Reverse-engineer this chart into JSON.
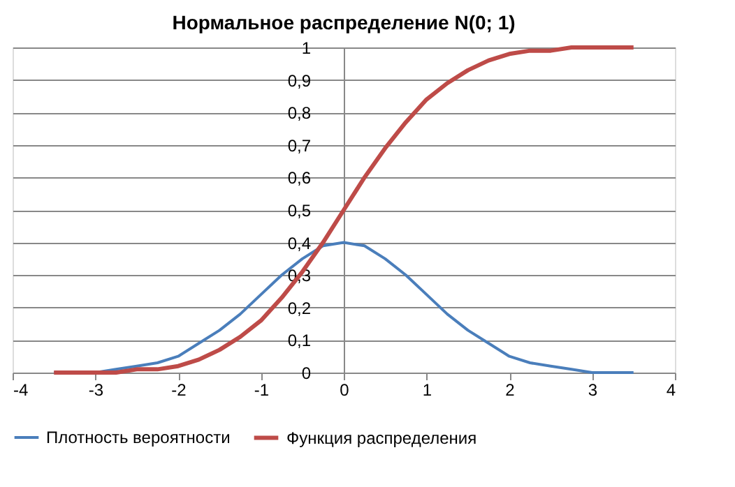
{
  "chart_data": {
    "type": "line",
    "title": "Нормальное распределение N(0; 1)",
    "x": [
      -3.5,
      -3.25,
      -3,
      -2.75,
      -2.5,
      -2.25,
      -2,
      -1.75,
      -1.5,
      -1.25,
      -1,
      -0.75,
      -0.5,
      -0.25,
      0,
      0.25,
      0.5,
      0.75,
      1,
      1.25,
      1.5,
      1.75,
      2,
      2.25,
      2.5,
      2.75,
      3,
      3.25,
      3.5
    ],
    "series": [
      {
        "name": "Плотность вероятности",
        "color": "#4a7ebb",
        "values": [
          0.0,
          0.0,
          0.0,
          0.01,
          0.02,
          0.03,
          0.05,
          0.09,
          0.13,
          0.18,
          0.24,
          0.3,
          0.35,
          0.39,
          0.4,
          0.39,
          0.35,
          0.3,
          0.24,
          0.18,
          0.13,
          0.09,
          0.05,
          0.03,
          0.02,
          0.01,
          0.0,
          0.0,
          0.0
        ]
      },
      {
        "name": "Функция распределения",
        "color": "#be4b48",
        "values": [
          0.0,
          0.0,
          0.0,
          0.0,
          0.01,
          0.01,
          0.02,
          0.04,
          0.07,
          0.11,
          0.16,
          0.23,
          0.31,
          0.4,
          0.5,
          0.6,
          0.69,
          0.77,
          0.84,
          0.89,
          0.93,
          0.96,
          0.98,
          0.99,
          0.99,
          1.0,
          1.0,
          1.0,
          1.0
        ]
      }
    ],
    "xlim": [
      -4,
      4
    ],
    "xticks": [
      -4,
      -3,
      -2,
      -1,
      0,
      1,
      2,
      3,
      4
    ],
    "ylim": [
      0,
      1
    ],
    "yticks": [
      {
        "value": 0,
        "label": "0"
      },
      {
        "value": 0.1,
        "label": "0,1"
      },
      {
        "value": 0.2,
        "label": "0,2"
      },
      {
        "value": 0.3,
        "label": "0,3"
      },
      {
        "value": 0.4,
        "label": "0,4"
      },
      {
        "value": 0.5,
        "label": "0,5"
      },
      {
        "value": 0.6,
        "label": "0,6"
      },
      {
        "value": 0.7,
        "label": "0,7"
      },
      {
        "value": 0.8,
        "label": "0,8"
      },
      {
        "value": 0.9,
        "label": "0,9"
      },
      {
        "value": 1,
        "label": "1"
      }
    ],
    "grid": "y",
    "legend": "bottom",
    "marker": "none",
    "line_style": "solid"
  }
}
